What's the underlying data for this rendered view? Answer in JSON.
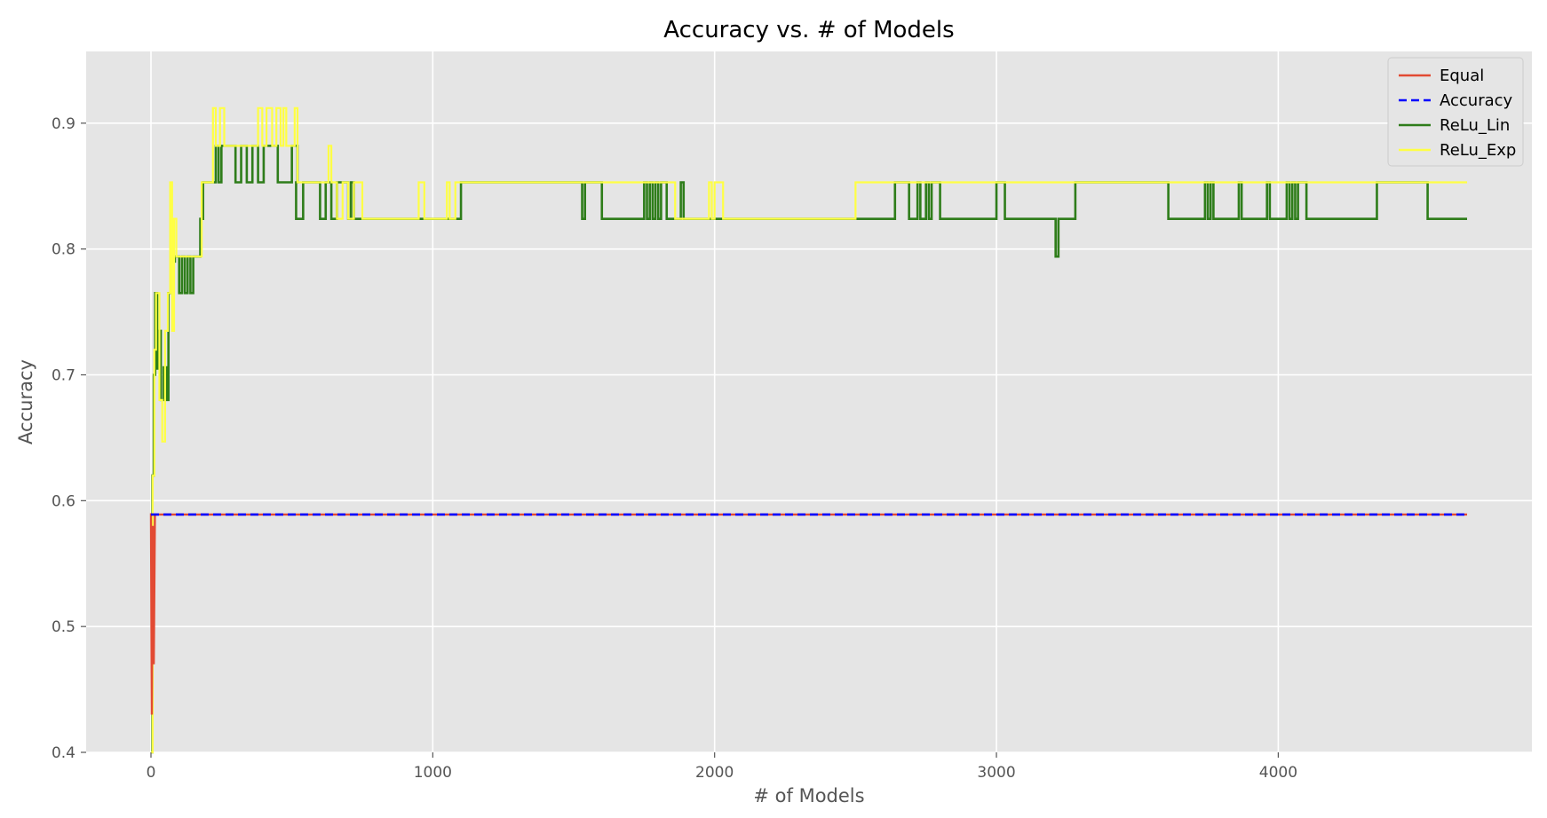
{
  "chart_data": {
    "type": "line",
    "title": "Accuracy vs. # of Models",
    "xlabel": "# of Models",
    "ylabel": "Accuracy",
    "xlim": [
      -230,
      4900
    ],
    "ylim": [
      0.4,
      0.957
    ],
    "xticks": [
      0,
      1000,
      2000,
      3000,
      4000
    ],
    "yticks": [
      0.4,
      0.5,
      0.6,
      0.7,
      0.8,
      0.9
    ],
    "xtick_labels": [
      "0",
      "1000",
      "2000",
      "3000",
      "4000"
    ],
    "ytick_labels": [
      "0.4",
      "0.5",
      "0.6",
      "0.7",
      "0.8",
      "0.9"
    ],
    "grid": true,
    "legend_position": "top-right",
    "series": [
      {
        "name": "Equal",
        "color": "#e24a33",
        "style": "solid",
        "step": false,
        "points": [
          [
            0,
            0.59
          ],
          [
            3,
            0.43
          ],
          [
            6,
            0.58
          ],
          [
            10,
            0.47
          ],
          [
            14,
            0.589
          ],
          [
            4670,
            0.589
          ]
        ]
      },
      {
        "name": "Accuracy",
        "color": "#0000ff",
        "style": "dashed",
        "step": false,
        "points": [
          [
            0,
            0.589
          ],
          [
            4670,
            0.589
          ]
        ]
      },
      {
        "name": "ReLu_Lin",
        "color": "#2e7d1a",
        "style": "solid",
        "step": true,
        "points": [
          [
            0,
            0.4
          ],
          [
            5,
            0.62
          ],
          [
            10,
            0.7
          ],
          [
            15,
            0.765
          ],
          [
            22,
            0.705
          ],
          [
            28,
            0.735
          ],
          [
            35,
            0.68
          ],
          [
            45,
            0.706
          ],
          [
            55,
            0.68
          ],
          [
            62,
            0.765
          ],
          [
            70,
            0.79
          ],
          [
            85,
            0.794
          ],
          [
            100,
            0.765
          ],
          [
            110,
            0.794
          ],
          [
            120,
            0.765
          ],
          [
            130,
            0.794
          ],
          [
            140,
            0.765
          ],
          [
            150,
            0.794
          ],
          [
            175,
            0.824
          ],
          [
            185,
            0.853
          ],
          [
            230,
            0.882
          ],
          [
            240,
            0.853
          ],
          [
            250,
            0.882
          ],
          [
            300,
            0.853
          ],
          [
            320,
            0.882
          ],
          [
            340,
            0.853
          ],
          [
            360,
            0.882
          ],
          [
            380,
            0.853
          ],
          [
            400,
            0.882
          ],
          [
            450,
            0.853
          ],
          [
            500,
            0.882
          ],
          [
            520,
            0.853
          ],
          [
            515,
            0.824
          ],
          [
            540,
            0.853
          ],
          [
            600,
            0.824
          ],
          [
            620,
            0.853
          ],
          [
            640,
            0.824
          ],
          [
            660,
            0.853
          ],
          [
            700,
            0.824
          ],
          [
            710,
            0.853
          ],
          [
            720,
            0.824
          ],
          [
            1000,
            0.824
          ],
          [
            1100,
            0.853
          ],
          [
            1530,
            0.824
          ],
          [
            1540,
            0.853
          ],
          [
            1600,
            0.824
          ],
          [
            1750,
            0.853
          ],
          [
            1760,
            0.824
          ],
          [
            1770,
            0.853
          ],
          [
            1780,
            0.824
          ],
          [
            1790,
            0.853
          ],
          [
            1800,
            0.824
          ],
          [
            1810,
            0.853
          ],
          [
            1830,
            0.824
          ],
          [
            1880,
            0.853
          ],
          [
            1890,
            0.824
          ],
          [
            2500,
            0.824
          ],
          [
            2640,
            0.853
          ],
          [
            2690,
            0.824
          ],
          [
            2720,
            0.853
          ],
          [
            2730,
            0.824
          ],
          [
            2750,
            0.853
          ],
          [
            2760,
            0.824
          ],
          [
            2770,
            0.853
          ],
          [
            2800,
            0.824
          ],
          [
            3000,
            0.853
          ],
          [
            3030,
            0.824
          ],
          [
            3210,
            0.794
          ],
          [
            3220,
            0.824
          ],
          [
            3280,
            0.853
          ],
          [
            3610,
            0.824
          ],
          [
            3740,
            0.853
          ],
          [
            3750,
            0.824
          ],
          [
            3760,
            0.853
          ],
          [
            3770,
            0.824
          ],
          [
            3860,
            0.853
          ],
          [
            3870,
            0.824
          ],
          [
            3960,
            0.853
          ],
          [
            3970,
            0.824
          ],
          [
            4030,
            0.853
          ],
          [
            4040,
            0.824
          ],
          [
            4050,
            0.853
          ],
          [
            4060,
            0.824
          ],
          [
            4070,
            0.853
          ],
          [
            4100,
            0.824
          ],
          [
            4350,
            0.853
          ],
          [
            4530,
            0.824
          ],
          [
            4670,
            0.824
          ]
        ]
      },
      {
        "name": "ReLu_Exp",
        "color": "#ffff44",
        "style": "solid",
        "step": true,
        "points": [
          [
            0,
            0.4
          ],
          [
            6,
            0.62
          ],
          [
            12,
            0.72
          ],
          [
            18,
            0.765
          ],
          [
            30,
            0.68
          ],
          [
            40,
            0.647
          ],
          [
            50,
            0.735
          ],
          [
            60,
            0.765
          ],
          [
            68,
            0.853
          ],
          [
            75,
            0.735
          ],
          [
            82,
            0.824
          ],
          [
            90,
            0.794
          ],
          [
            180,
            0.853
          ],
          [
            220,
            0.912
          ],
          [
            230,
            0.882
          ],
          [
            245,
            0.912
          ],
          [
            260,
            0.882
          ],
          [
            380,
            0.912
          ],
          [
            395,
            0.882
          ],
          [
            410,
            0.912
          ],
          [
            430,
            0.882
          ],
          [
            445,
            0.912
          ],
          [
            460,
            0.882
          ],
          [
            470,
            0.912
          ],
          [
            480,
            0.882
          ],
          [
            510,
            0.912
          ],
          [
            520,
            0.853
          ],
          [
            630,
            0.882
          ],
          [
            640,
            0.853
          ],
          [
            660,
            0.824
          ],
          [
            680,
            0.853
          ],
          [
            700,
            0.824
          ],
          [
            720,
            0.853
          ],
          [
            750,
            0.824
          ],
          [
            950,
            0.853
          ],
          [
            970,
            0.824
          ],
          [
            1050,
            0.853
          ],
          [
            1060,
            0.824
          ],
          [
            1080,
            0.853
          ],
          [
            1740,
            0.853
          ],
          [
            1860,
            0.824
          ],
          [
            1980,
            0.853
          ],
          [
            1990,
            0.824
          ],
          [
            2000,
            0.853
          ],
          [
            2030,
            0.824
          ],
          [
            2500,
            0.853
          ],
          [
            4670,
            0.853
          ]
        ]
      }
    ]
  }
}
